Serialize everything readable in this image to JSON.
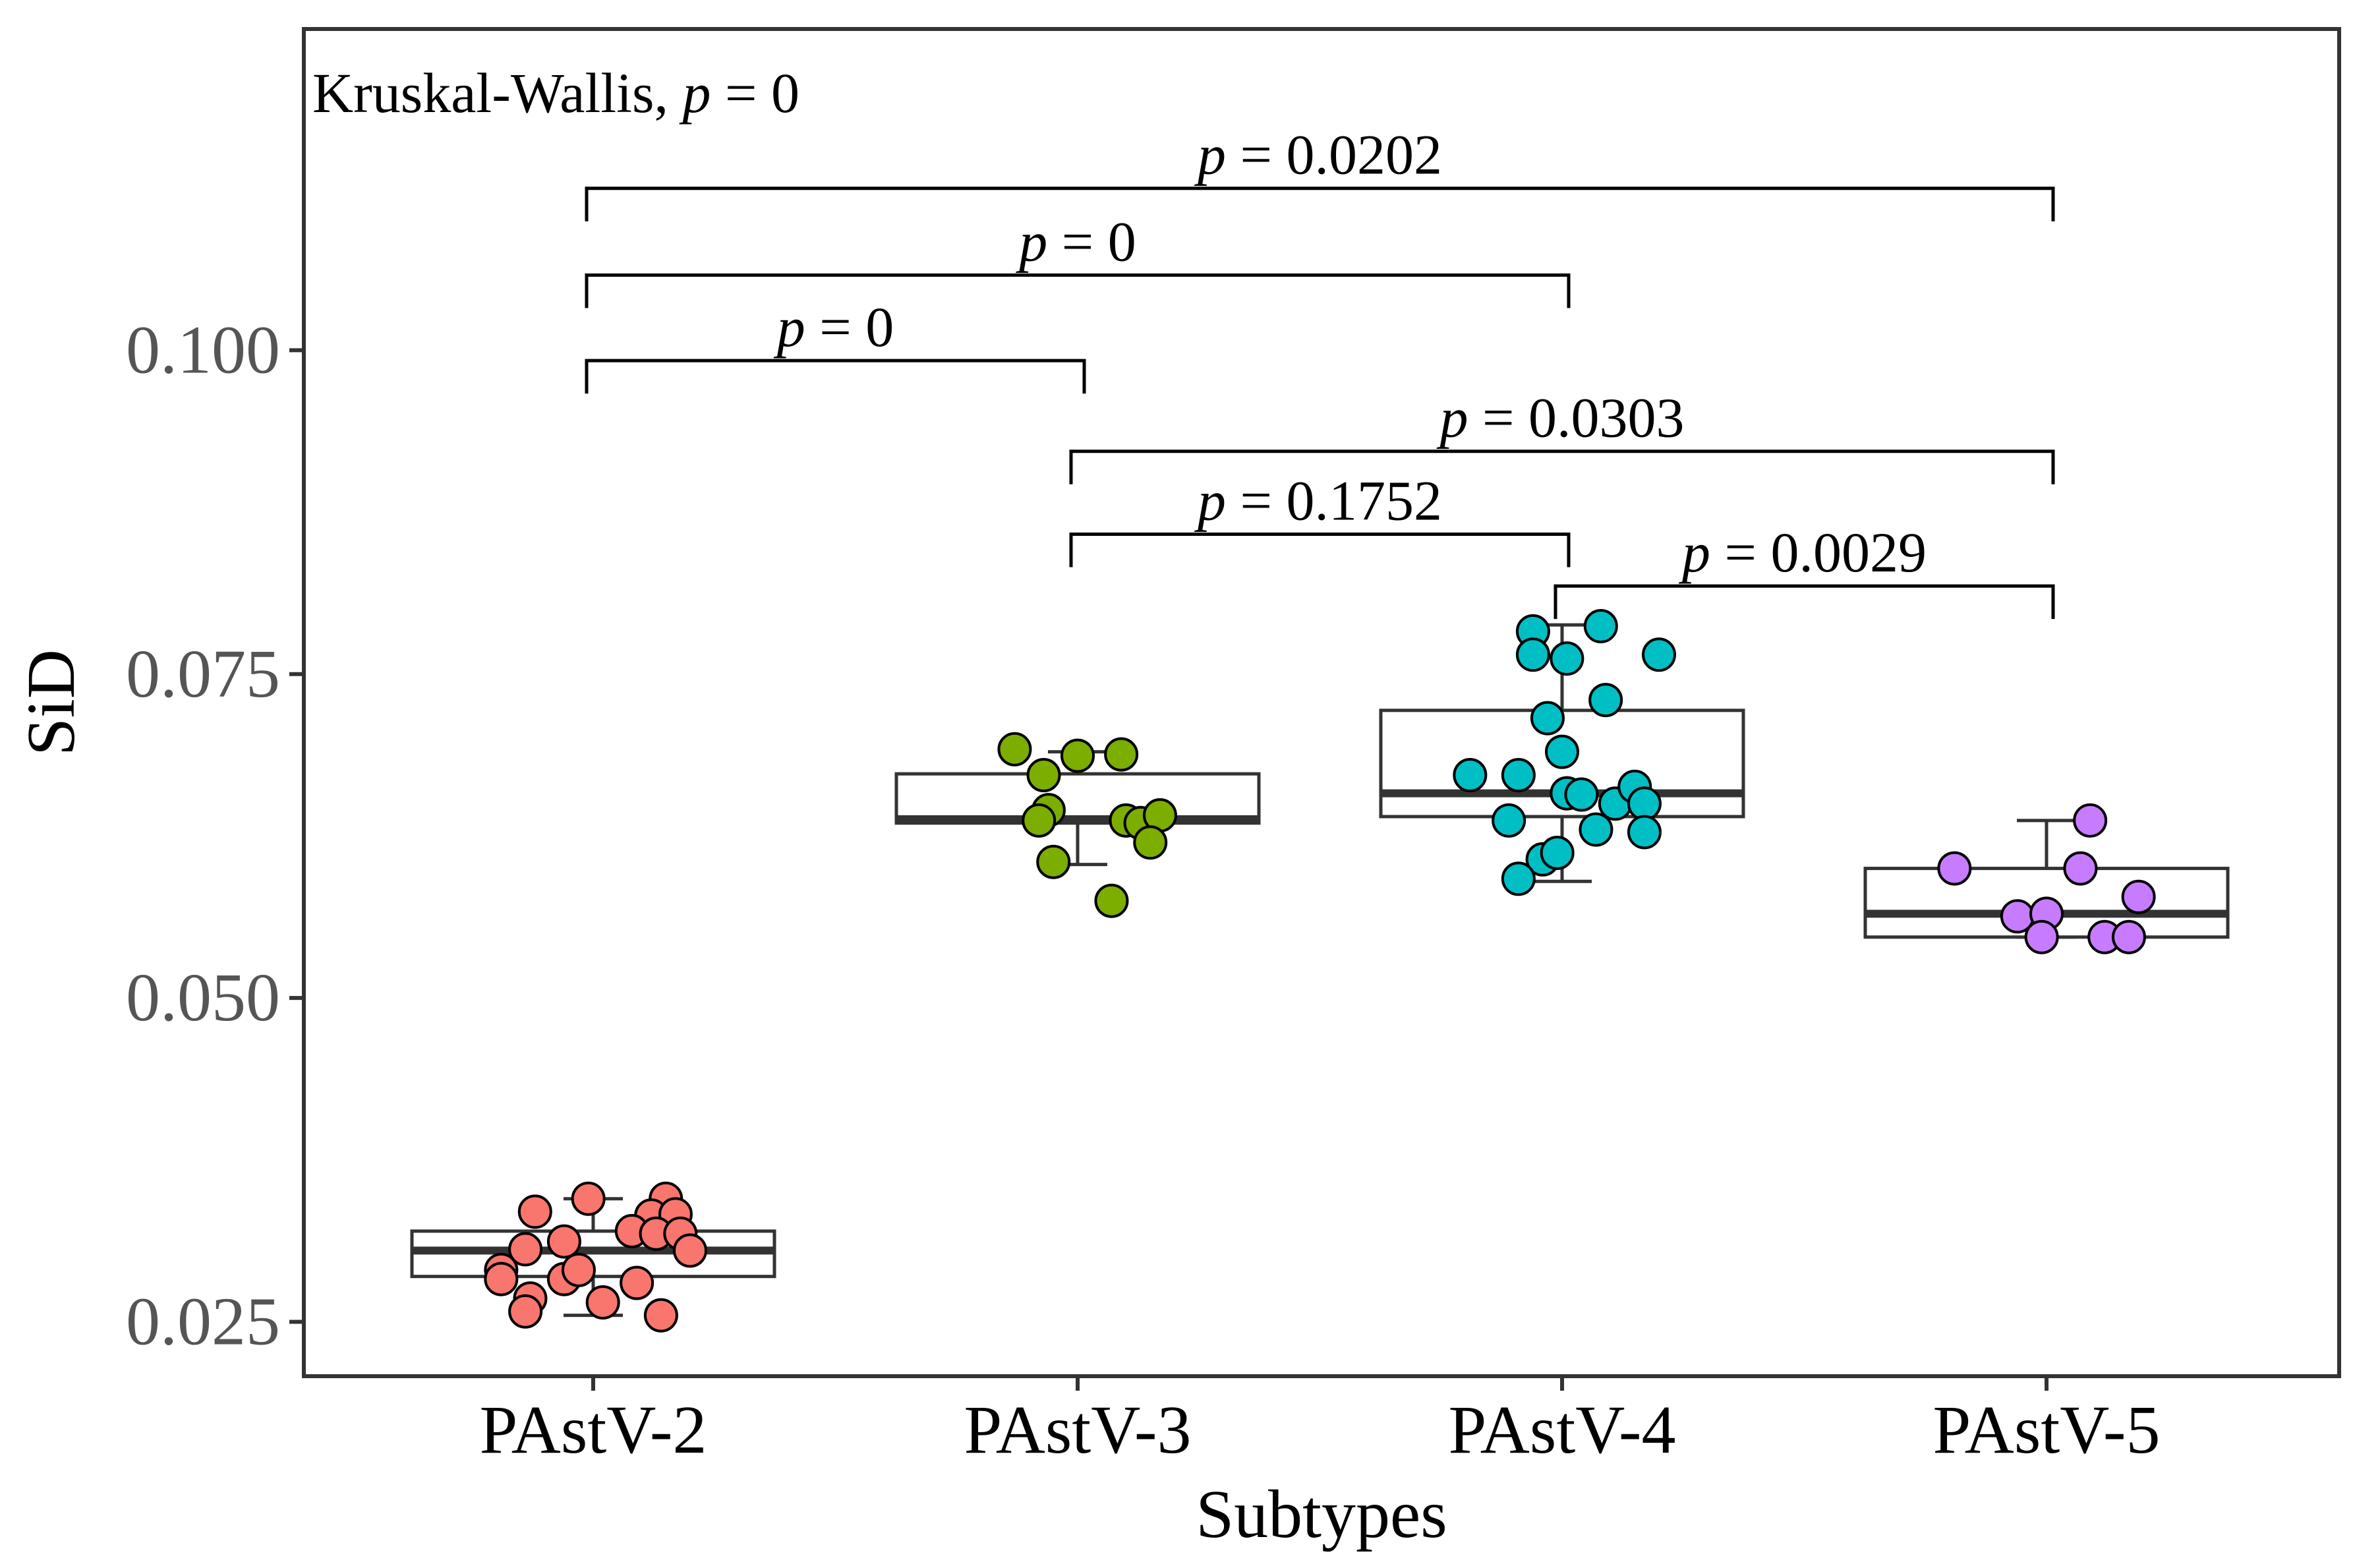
{
  "chart_data": {
    "type": "boxplot",
    "xlabel": "Subtypes",
    "ylabel": "SiD",
    "ylim": [
      0.0208,
      0.1248
    ],
    "yticks": [
      0.025,
      0.05,
      0.075,
      0.1
    ],
    "ytick_labels": [
      "0.025",
      "0.050",
      "0.075",
      "0.100"
    ],
    "categories": [
      "PAstV-2",
      "PAstV-3",
      "PAstV-4",
      "PAstV-5"
    ],
    "groups": [
      {
        "name": "PAstV-2",
        "color": "#F8766D",
        "stats": {
          "whisker_low": 0.0255,
          "q1": 0.0285,
          "median": 0.0305,
          "q3": 0.032,
          "whisker_high": 0.0345
        },
        "points": [
          {
            "x": 0.88,
            "y": 0.0335
          },
          {
            "x": 0.99,
            "y": 0.0345
          },
          {
            "x": 1.15,
            "y": 0.0345
          },
          {
            "x": 1.12,
            "y": 0.0332
          },
          {
            "x": 1.17,
            "y": 0.0333
          },
          {
            "x": 0.86,
            "y": 0.0306
          },
          {
            "x": 0.94,
            "y": 0.0312
          },
          {
            "x": 1.08,
            "y": 0.032
          },
          {
            "x": 1.13,
            "y": 0.0318
          },
          {
            "x": 1.18,
            "y": 0.0318
          },
          {
            "x": 1.2,
            "y": 0.0305
          },
          {
            "x": 0.81,
            "y": 0.029
          },
          {
            "x": 0.81,
            "y": 0.0283
          },
          {
            "x": 0.94,
            "y": 0.0283
          },
          {
            "x": 0.97,
            "y": 0.029
          },
          {
            "x": 1.09,
            "y": 0.028
          },
          {
            "x": 0.87,
            "y": 0.0268
          },
          {
            "x": 1.02,
            "y": 0.0265
          },
          {
            "x": 0.86,
            "y": 0.0258
          },
          {
            "x": 1.14,
            "y": 0.0255
          }
        ]
      },
      {
        "name": "PAstV-3",
        "color": "#7CAE00",
        "stats": {
          "whisker_low": 0.0603,
          "q1": 0.0635,
          "median": 0.0638,
          "q3": 0.0673,
          "whisker_high": 0.069
        },
        "points": [
          {
            "x": 1.87,
            "y": 0.0692
          },
          {
            "x": 2.0,
            "y": 0.0687
          },
          {
            "x": 2.09,
            "y": 0.0688
          },
          {
            "x": 1.93,
            "y": 0.0672
          },
          {
            "x": 1.94,
            "y": 0.0645
          },
          {
            "x": 1.92,
            "y": 0.0637
          },
          {
            "x": 2.1,
            "y": 0.0637
          },
          {
            "x": 2.13,
            "y": 0.0635
          },
          {
            "x": 2.17,
            "y": 0.0641
          },
          {
            "x": 2.15,
            "y": 0.062
          },
          {
            "x": 1.95,
            "y": 0.0605
          },
          {
            "x": 2.07,
            "y": 0.0575
          }
        ]
      },
      {
        "name": "PAstV-4",
        "color": "#00BFC4",
        "stats": {
          "whisker_low": 0.059,
          "q1": 0.064,
          "median": 0.0658,
          "q3": 0.0722,
          "whisker_high": 0.0788
        },
        "points": [
          {
            "x": 2.94,
            "y": 0.0783
          },
          {
            "x": 3.08,
            "y": 0.0787
          },
          {
            "x": 2.94,
            "y": 0.0765
          },
          {
            "x": 3.01,
            "y": 0.0762
          },
          {
            "x": 3.2,
            "y": 0.0765
          },
          {
            "x": 3.09,
            "y": 0.073
          },
          {
            "x": 2.97,
            "y": 0.0716
          },
          {
            "x": 3.0,
            "y": 0.069
          },
          {
            "x": 2.81,
            "y": 0.0672
          },
          {
            "x": 2.91,
            "y": 0.0672
          },
          {
            "x": 3.01,
            "y": 0.0658
          },
          {
            "x": 3.04,
            "y": 0.0657
          },
          {
            "x": 3.11,
            "y": 0.065
          },
          {
            "x": 3.15,
            "y": 0.0663
          },
          {
            "x": 3.17,
            "y": 0.065
          },
          {
            "x": 2.89,
            "y": 0.0637
          },
          {
            "x": 3.07,
            "y": 0.063
          },
          {
            "x": 3.17,
            "y": 0.0628
          },
          {
            "x": 2.96,
            "y": 0.0607
          },
          {
            "x": 2.99,
            "y": 0.0612
          },
          {
            "x": 2.91,
            "y": 0.0592
          }
        ]
      },
      {
        "name": "PAstV-5",
        "color": "#C77CFF",
        "stats": {
          "whisker_low": 0.0547,
          "q1": 0.0547,
          "median": 0.0565,
          "q3": 0.06,
          "whisker_high": 0.0637
        },
        "points": [
          {
            "x": 4.09,
            "y": 0.0637
          },
          {
            "x": 3.81,
            "y": 0.06
          },
          {
            "x": 4.07,
            "y": 0.06
          },
          {
            "x": 4.19,
            "y": 0.0578
          },
          {
            "x": 3.94,
            "y": 0.0563
          },
          {
            "x": 4.0,
            "y": 0.0565
          },
          {
            "x": 3.99,
            "y": 0.0547
          },
          {
            "x": 4.12,
            "y": 0.0547
          },
          {
            "x": 4.17,
            "y": 0.0547
          }
        ]
      }
    ],
    "global_test": {
      "prefix": "Kruskal-Wallis, ",
      "p": "p",
      "value": " = 0"
    },
    "comparisons": [
      {
        "from": 1,
        "to": 4,
        "y": 0.1125,
        "label": "= 0.0202"
      },
      {
        "from": 1,
        "to": 3,
        "y": 0.1058,
        "label": "= 0"
      },
      {
        "from": 1,
        "to": 2,
        "y": 0.0992,
        "label": "= 0"
      },
      {
        "from": 2,
        "to": 4,
        "y": 0.0922,
        "label": "= 0.0303"
      },
      {
        "from": 2,
        "to": 3,
        "y": 0.0858,
        "label": "= 0.1752"
      },
      {
        "from": 3,
        "to": 4,
        "y": 0.0818,
        "label": "= 0.0029"
      }
    ],
    "p_symbol": "p"
  }
}
